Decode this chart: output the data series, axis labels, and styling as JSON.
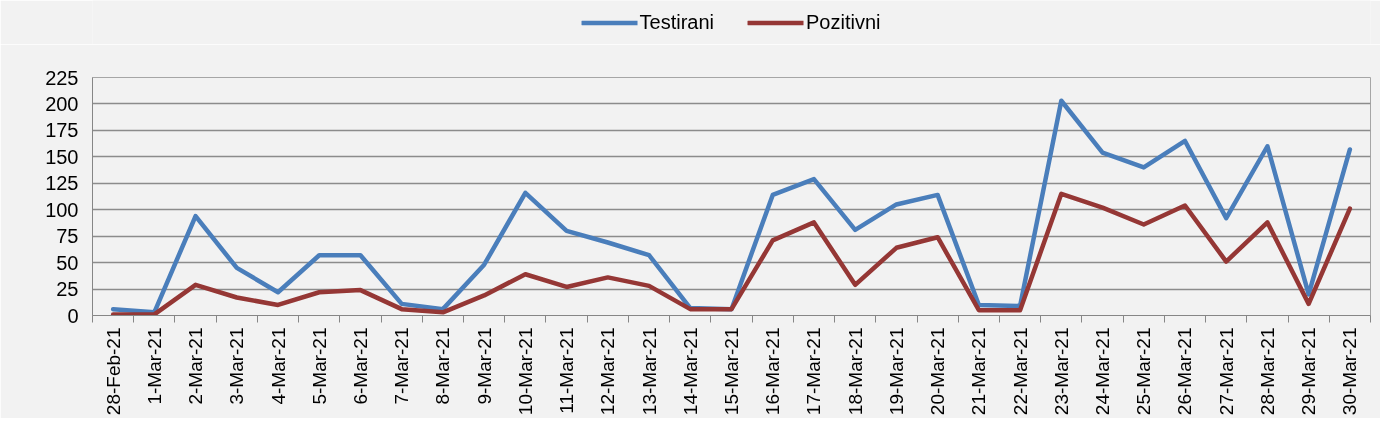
{
  "chart_data": {
    "type": "line",
    "categories": [
      "28-Feb-21",
      "1-Mar-21",
      "2-Mar-21",
      "3-Mar-21",
      "4-Mar-21",
      "5-Mar-21",
      "6-Mar-21",
      "7-Mar-21",
      "8-Mar-21",
      "9-Mar-21",
      "10-Mar-21",
      "11-Mar-21",
      "12-Mar-21",
      "13-Mar-21",
      "14-Mar-21",
      "15-Mar-21",
      "16-Mar-21",
      "17-Mar-21",
      "18-Mar-21",
      "19-Mar-21",
      "20-Mar-21",
      "21-Mar-21",
      "22-Mar-21",
      "23-Mar-21",
      "24-Mar-21",
      "25-Mar-21",
      "26-Mar-21",
      "27-Mar-21",
      "28-Mar-21",
      "29-Mar-21",
      "30-Mar-21"
    ],
    "series": [
      {
        "name": "Testirani",
        "color": "#4a7ebb",
        "values": [
          6,
          3,
          94,
          45,
          22,
          57,
          57,
          11,
          6,
          48,
          116,
          80,
          69,
          57,
          7,
          6,
          114,
          129,
          81,
          105,
          114,
          10,
          9,
          203,
          154,
          140,
          165,
          92,
          160,
          20,
          157
        ]
      },
      {
        "name": "Pozitivni",
        "color": "#953735",
        "values": [
          1,
          1,
          29,
          17,
          10,
          22,
          24,
          6,
          3,
          19,
          39,
          27,
          36,
          28,
          6,
          6,
          71,
          88,
          29,
          64,
          74,
          5,
          5,
          115,
          102,
          86,
          104,
          51,
          88,
          11,
          101
        ]
      }
    ],
    "ylim": [
      0,
      225
    ],
    "yticks": [
      0,
      25,
      50,
      75,
      100,
      125,
      150,
      175,
      200,
      225
    ],
    "grid": "y",
    "legend": "top",
    "marker": "none",
    "line_style": "solid"
  }
}
